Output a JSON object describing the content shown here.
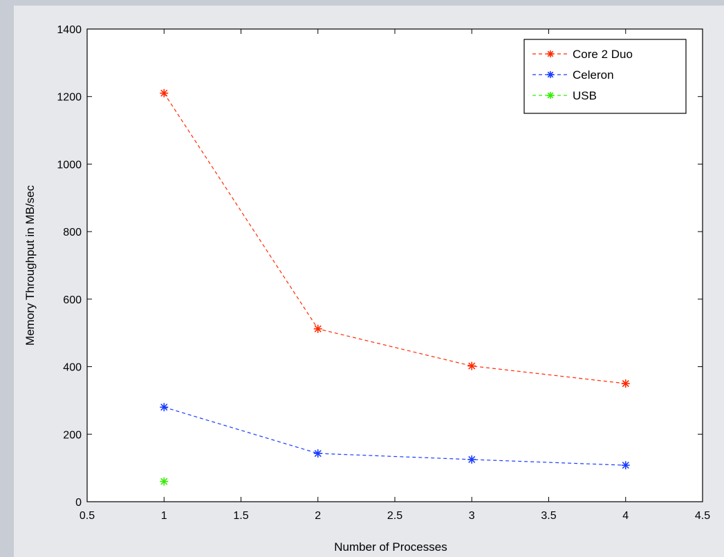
{
  "chart_data": {
    "type": "line",
    "title": "",
    "xlabel": "Number of Processes",
    "ylabel": "Memory Throughput in MB/sec",
    "xlim": [
      0.5,
      4.5
    ],
    "ylim": [
      0,
      1400
    ],
    "xticks": [
      0.5,
      1,
      1.5,
      2,
      2.5,
      3,
      3.5,
      4,
      4.5
    ],
    "yticks": [
      0,
      200,
      400,
      600,
      800,
      1000,
      1200,
      1400
    ],
    "xtick_labels": [
      "0.5",
      "1",
      "1.5",
      "2",
      "2.5",
      "3",
      "3.5",
      "4",
      "4.5"
    ],
    "ytick_labels": [
      "0",
      "200",
      "400",
      "600",
      "800",
      "1000",
      "1200",
      "1400"
    ],
    "grid": false,
    "legend_position": "top-right",
    "series": [
      {
        "name": "Core 2 Duo",
        "color": "#ff2a00",
        "marker": "asterisk",
        "line": "dashed",
        "x": [
          1,
          2,
          3,
          4
        ],
        "y": [
          1210,
          512,
          402,
          350
        ]
      },
      {
        "name": "Celeron",
        "color": "#1a3cff",
        "marker": "asterisk",
        "line": "dashed",
        "x": [
          1,
          2,
          3,
          4
        ],
        "y": [
          280,
          143,
          125,
          108
        ]
      },
      {
        "name": "USB",
        "color": "#33ee00",
        "marker": "asterisk",
        "line": "dashed",
        "x": [
          1
        ],
        "y": [
          60
        ]
      }
    ]
  }
}
